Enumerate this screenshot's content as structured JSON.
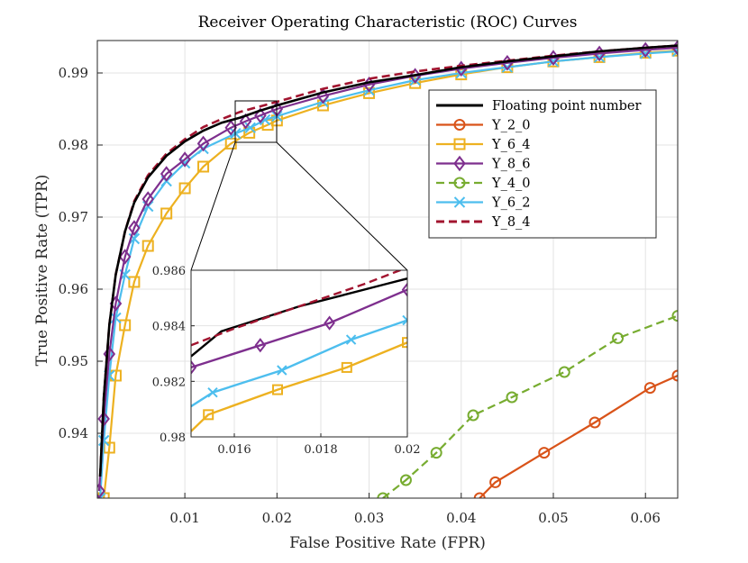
{
  "chart_data": {
    "type": "line",
    "title": "Receiver Operating Characteristic (ROC) Curves",
    "xlabel": "False Positive Rate (FPR)",
    "ylabel": "True Positive Rate (TPR)",
    "xlim": [
      0.0005,
      0.0635
    ],
    "ylim": [
      0.931,
      0.9945
    ],
    "x_ticks": [
      0.01,
      0.02,
      0.03,
      0.04,
      0.05,
      0.06
    ],
    "x_tick_labels": [
      "0.01",
      "0.02",
      "0.03",
      "0.04",
      "0.05",
      "0.06"
    ],
    "y_ticks": [
      0.94,
      0.95,
      0.96,
      0.97,
      0.98,
      0.99
    ],
    "y_tick_labels": [
      "0.94",
      "0.95",
      "0.96",
      "0.97",
      "0.98",
      "0.99"
    ],
    "grid": true,
    "legend_position": "top-right",
    "series": [
      {
        "name": "Floating point number",
        "color": "#000000",
        "dash": "solid",
        "marker": "none",
        "x": [
          0.0008,
          0.0012,
          0.0018,
          0.0025,
          0.0035,
          0.0045,
          0.006,
          0.008,
          0.01,
          0.012,
          0.014,
          0.016,
          0.018,
          0.02,
          0.025,
          0.03,
          0.035,
          0.04,
          0.045,
          0.05,
          0.055,
          0.06,
          0.0635
        ],
        "y": [
          0.934,
          0.945,
          0.955,
          0.962,
          0.968,
          0.972,
          0.9755,
          0.9785,
          0.9805,
          0.982,
          0.9831,
          0.9838,
          0.9847,
          0.9855,
          0.9873,
          0.9887,
          0.9897,
          0.9908,
          0.9916,
          0.9923,
          0.993,
          0.9935,
          0.9938
        ]
      },
      {
        "name": "Y_2_0",
        "color": "#D95319",
        "dash": "solid",
        "marker": "circle",
        "x": [
          0.042,
          0.0437,
          0.049,
          0.0545,
          0.0605,
          0.0635
        ],
        "y": [
          0.931,
          0.9332,
          0.9373,
          0.9415,
          0.9463,
          0.948
        ]
      },
      {
        "name": "Y_6_4",
        "color": "#EDB120",
        "dash": "solid",
        "marker": "square",
        "x": [
          0.0012,
          0.0018,
          0.0025,
          0.0035,
          0.0045,
          0.006,
          0.008,
          0.01,
          0.012,
          0.015,
          0.017,
          0.019,
          0.02,
          0.025,
          0.03,
          0.035,
          0.04,
          0.045,
          0.05,
          0.055,
          0.06,
          0.0635
        ],
        "y": [
          0.931,
          0.938,
          0.948,
          0.955,
          0.961,
          0.966,
          0.9705,
          0.974,
          0.977,
          0.9802,
          0.9817,
          0.9828,
          0.9834,
          0.9855,
          0.9872,
          0.9886,
          0.9898,
          0.9908,
          0.9916,
          0.9922,
          0.9928,
          0.9931
        ]
      },
      {
        "name": "Y_8_6",
        "color": "#7E2F8E",
        "dash": "solid",
        "marker": "diamond",
        "x": [
          0.0007,
          0.0012,
          0.0018,
          0.0025,
          0.0035,
          0.0045,
          0.006,
          0.008,
          0.01,
          0.012,
          0.015,
          0.0166,
          0.0182,
          0.02,
          0.025,
          0.03,
          0.035,
          0.04,
          0.045,
          0.05,
          0.055,
          0.06,
          0.0635
        ],
        "y": [
          0.932,
          0.942,
          0.951,
          0.958,
          0.9645,
          0.9685,
          0.9725,
          0.976,
          0.978,
          0.9802,
          0.9824,
          0.9833,
          0.9841,
          0.985,
          0.9868,
          0.9884,
          0.9896,
          0.9906,
          0.9914,
          0.9921,
          0.9927,
          0.9932,
          0.9935
        ]
      },
      {
        "name": "Y_4_0",
        "color": "#77AC30",
        "dash": "dashed",
        "marker": "circle",
        "x": [
          0.0315,
          0.034,
          0.0373,
          0.0413,
          0.0455,
          0.0512,
          0.057,
          0.0635
        ],
        "y": [
          0.931,
          0.9335,
          0.9373,
          0.9425,
          0.945,
          0.9485,
          0.9532,
          0.9563
        ]
      },
      {
        "name": "Y_6_2",
        "color": "#4DBEEE",
        "dash": "solid",
        "marker": "x",
        "x": [
          0.0008,
          0.0012,
          0.0018,
          0.0025,
          0.0035,
          0.0045,
          0.006,
          0.008,
          0.01,
          0.012,
          0.0155,
          0.0171,
          0.0187,
          0.02,
          0.025,
          0.03,
          0.035,
          0.04,
          0.045,
          0.05,
          0.055,
          0.06,
          0.0635
        ],
        "y": [
          0.931,
          0.939,
          0.948,
          0.956,
          0.962,
          0.967,
          0.9715,
          0.975,
          0.9775,
          0.9795,
          0.9816,
          0.9824,
          0.9835,
          0.984,
          0.986,
          0.9876,
          0.989,
          0.99,
          0.9908,
          0.9916,
          0.9922,
          0.9927,
          0.993
        ]
      },
      {
        "name": "Y_8_4",
        "color": "#A2142F",
        "dash": "dashed",
        "marker": "none",
        "x": [
          0.0008,
          0.0012,
          0.0018,
          0.0025,
          0.0035,
          0.0045,
          0.006,
          0.008,
          0.01,
          0.012,
          0.014,
          0.016,
          0.018,
          0.02,
          0.025,
          0.03,
          0.035,
          0.04,
          0.045,
          0.05,
          0.055,
          0.06,
          0.0635
        ],
        "y": [
          0.934,
          0.945,
          0.955,
          0.962,
          0.968,
          0.9722,
          0.9758,
          0.9788,
          0.9808,
          0.9825,
          0.9836,
          0.9846,
          0.9853,
          0.986,
          0.9878,
          0.9892,
          0.9902,
          0.991,
          0.9917,
          0.9924,
          0.993,
          0.9935,
          0.9938
        ]
      }
    ],
    "inset": {
      "xlim": [
        0.015,
        0.02
      ],
      "ylim": [
        0.98,
        0.986
      ],
      "x_ticks": [
        0.016,
        0.018,
        0.02
      ],
      "x_tick_labels": [
        "0.016",
        "0.018",
        "0.02"
      ],
      "y_ticks": [
        0.98,
        0.982,
        0.984,
        0.986
      ],
      "y_tick_labels": [
        "0.98",
        "0.982",
        "0.984",
        "0.986"
      ],
      "series": [
        {
          "name": "Floating point number",
          "x": [
            0.015,
            0.0157,
            0.0165,
            0.0175,
            0.0185,
            0.0195,
            0.02
          ],
          "y": [
            0.9829,
            0.9838,
            0.9842,
            0.9847,
            0.9851,
            0.9855,
            0.9857
          ]
        },
        {
          "name": "Y_6_4",
          "x": [
            0.015,
            0.0154,
            0.017,
            0.0186,
            0.02
          ],
          "y": [
            0.9802,
            0.9808,
            0.9817,
            0.9825,
            0.9834
          ]
        },
        {
          "name": "Y_8_6",
          "x": [
            0.015,
            0.0166,
            0.0182,
            0.02
          ],
          "y": [
            0.9825,
            0.9833,
            0.9841,
            0.9853
          ]
        },
        {
          "name": "Y_6_2",
          "x": [
            0.015,
            0.0155,
            0.0171,
            0.0187,
            0.02
          ],
          "y": [
            0.9811,
            0.9816,
            0.9824,
            0.9835,
            0.9842
          ]
        },
        {
          "name": "Y_8_4",
          "x": [
            0.015,
            0.016,
            0.0175,
            0.019,
            0.02
          ],
          "y": [
            0.9833,
            0.9839,
            0.9847,
            0.9855,
            0.9861
          ]
        }
      ]
    }
  }
}
